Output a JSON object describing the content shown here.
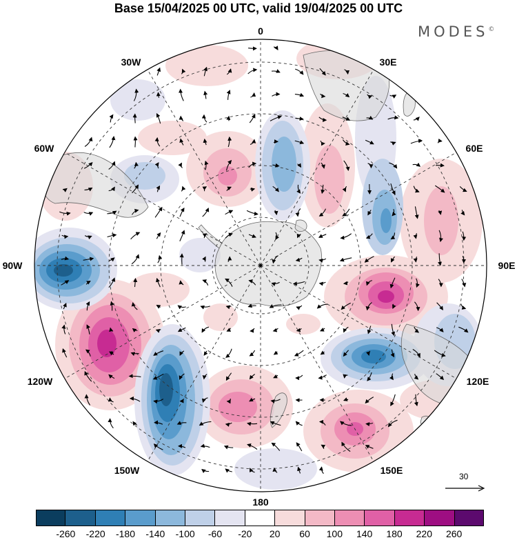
{
  "title": "Base 15/04/2025 00 UTC, valid 19/04/2025 00 UTC",
  "brand": "MODES",
  "brand_mark": "©",
  "longitude_labels": [
    "0",
    "30E",
    "60E",
    "90E",
    "120E",
    "150E",
    "180",
    "150W",
    "120W",
    "90W",
    "60W",
    "30W"
  ],
  "reference_vector": "30",
  "colorbar": {
    "ticks": [
      "-260",
      "-220",
      "-180",
      "-140",
      "-100",
      "-60",
      "-20",
      "20",
      "60",
      "100",
      "140",
      "180",
      "220",
      "260"
    ],
    "colors": [
      "#0b3d5e",
      "#1d5f8c",
      "#2f7fb5",
      "#5a9ccc",
      "#8cb8dc",
      "#bfd0e8",
      "#e4e4f1",
      "#ffffff",
      "#f7dcdc",
      "#f3b9c6",
      "#ed8eb3",
      "#e060a6",
      "#c72b92",
      "#9e0e82",
      "#5c0a6e"
    ]
  },
  "colors": {
    "land": "#e3e3e3",
    "coast": "#666666",
    "grid": "#333333"
  }
}
